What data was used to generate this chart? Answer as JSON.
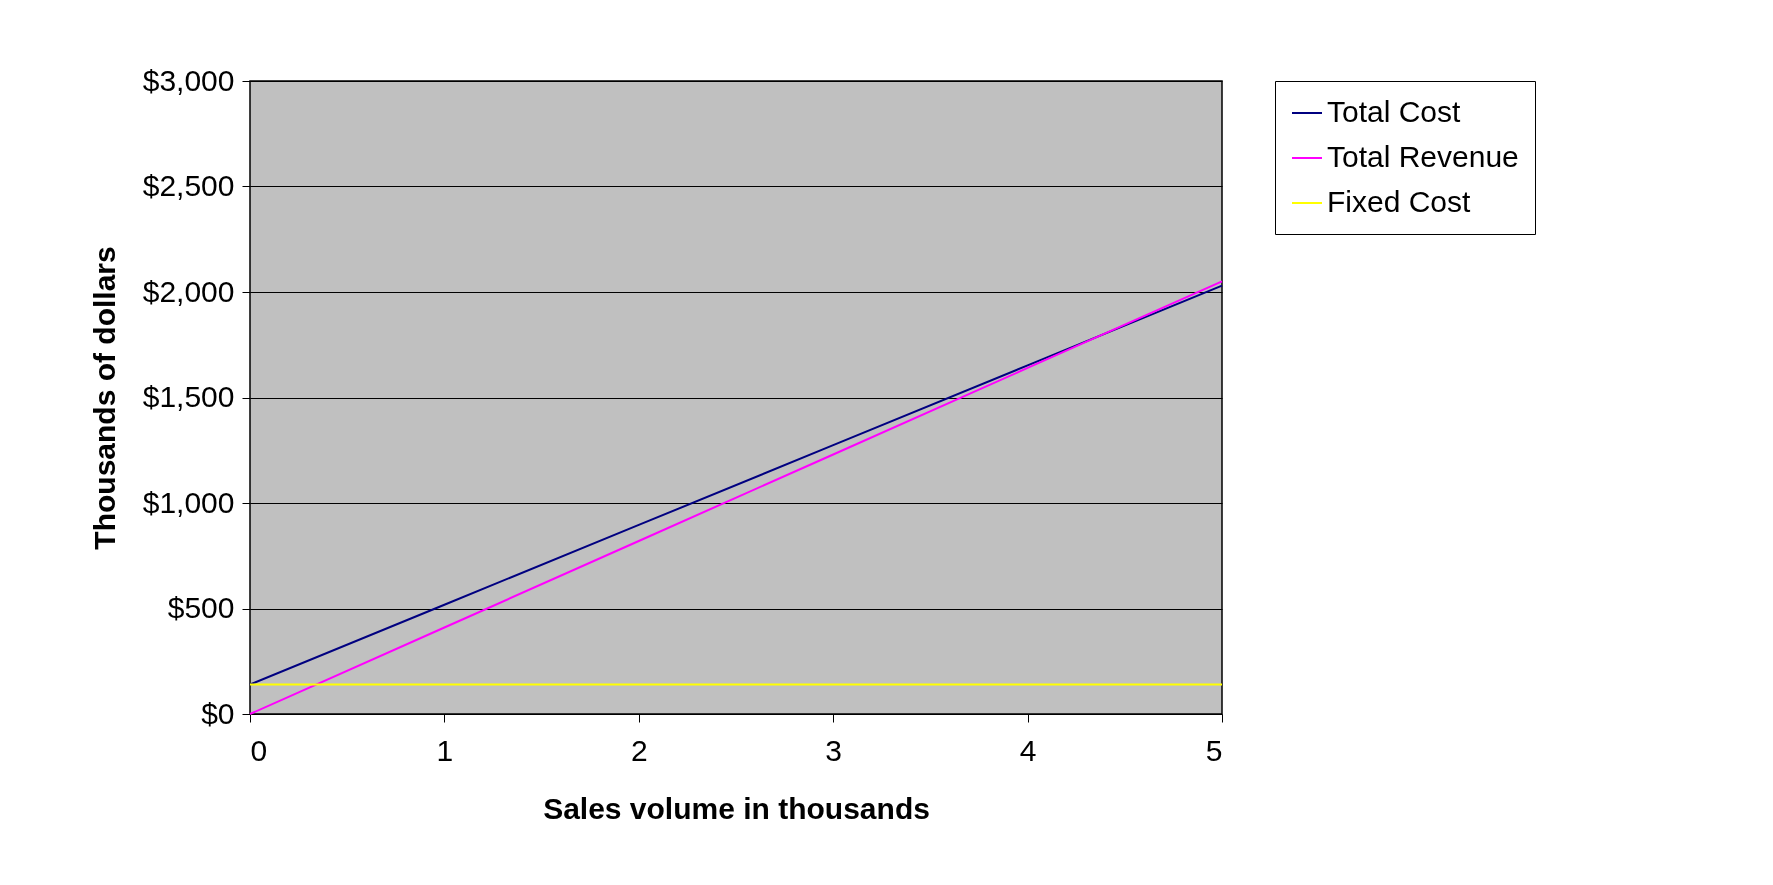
{
  "chart_data": {
    "type": "line",
    "xlabel": "Sales volume in thousands",
    "ylabel": "Thousands of dollars",
    "x": [
      0,
      1,
      2,
      3,
      4,
      5
    ],
    "series": [
      {
        "name": "Total Cost",
        "color": "#000080",
        "values": [
          140,
          518,
          896,
          1274,
          1652,
          2030
        ]
      },
      {
        "name": "Total Revenue",
        "color": "#ff00ff",
        "values": [
          0,
          410,
          820,
          1230,
          1640,
          2050
        ]
      },
      {
        "name": "Fixed Cost",
        "color": "#ffff00",
        "values": [
          140,
          140,
          140,
          140,
          140,
          140
        ]
      }
    ],
    "xlim": [
      0,
      5
    ],
    "xticks": [
      0,
      1,
      2,
      3,
      4,
      5
    ],
    "ylim": [
      0,
      3000
    ],
    "yticks": [
      {
        "value": 0,
        "label": "$0"
      },
      {
        "value": 500,
        "label": "$500"
      },
      {
        "value": 1000,
        "label": "$1,000"
      },
      {
        "value": 1500,
        "label": "$1,500"
      },
      {
        "value": 2000,
        "label": "$2,000"
      },
      {
        "value": 2500,
        "label": "$2,500"
      },
      {
        "value": 3000,
        "label": "$3,000"
      }
    ],
    "grid": "y",
    "legend": "right",
    "line_style": "solid"
  }
}
